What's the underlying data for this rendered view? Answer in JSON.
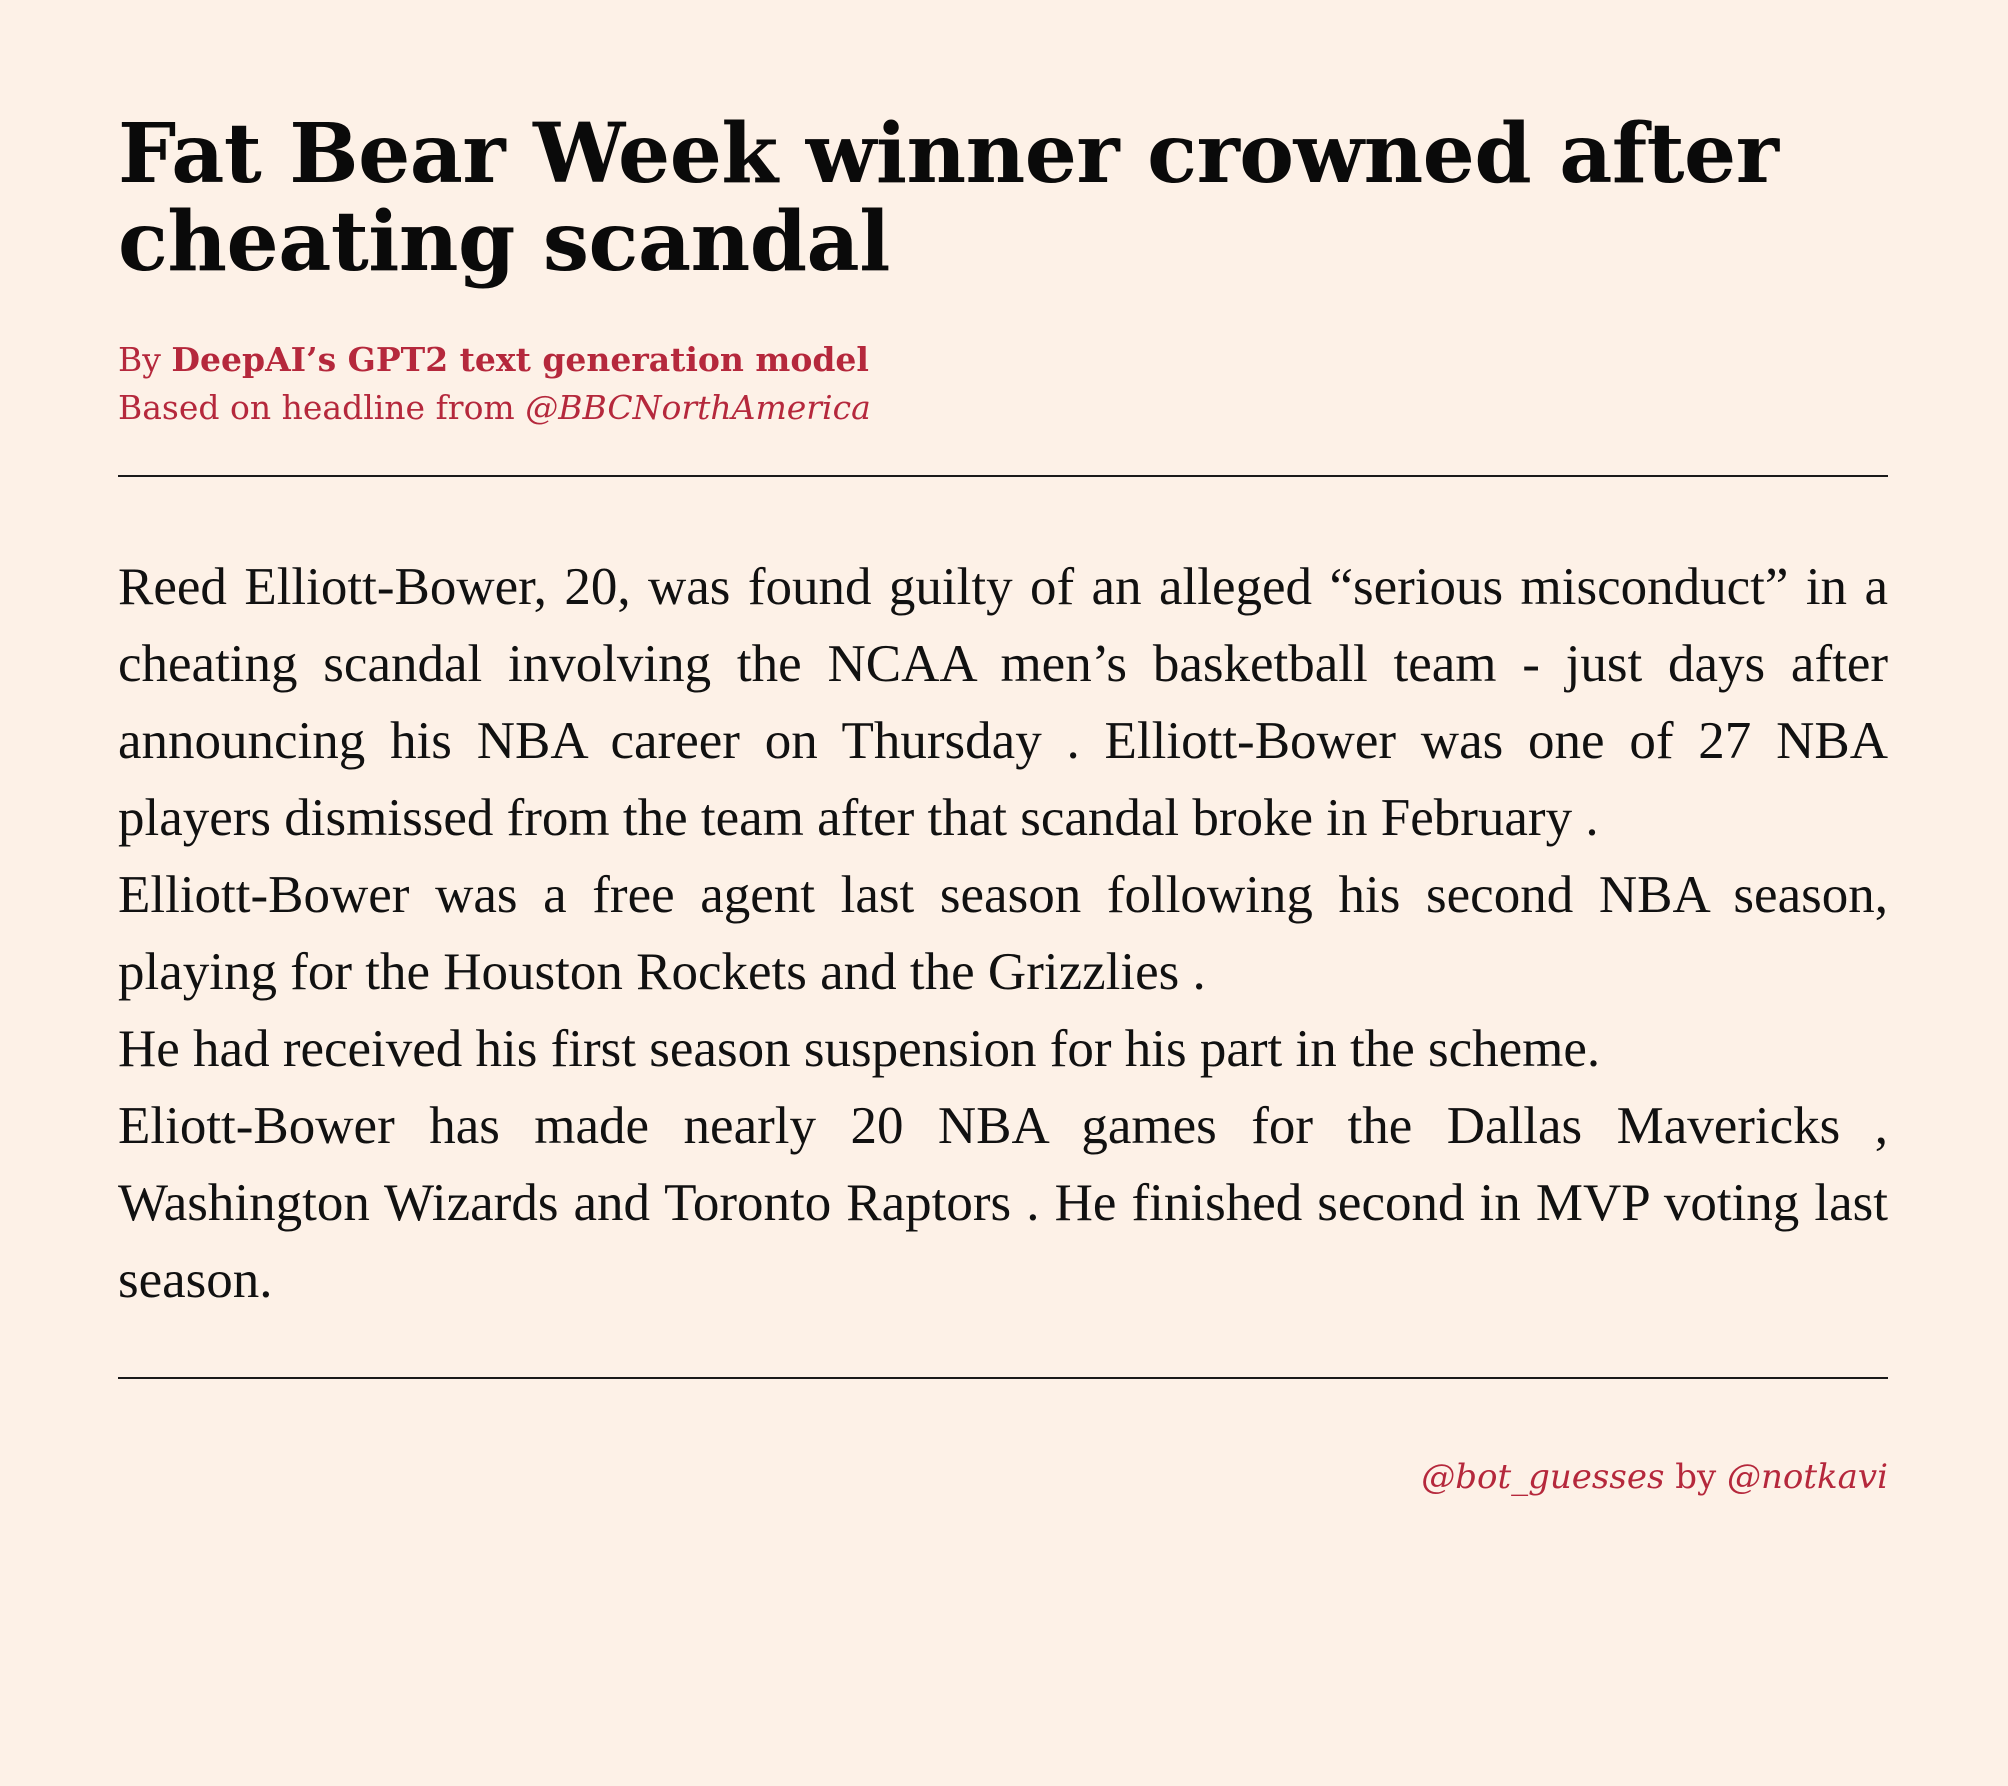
{
  "article": {
    "headline": "Fat Bear Week winner crowned after cheating scandal",
    "byline_prefix": "By ",
    "author": "DeepAI’s GPT2 text generation model",
    "based_on_prefix": "Based on headline from ",
    "source_handle": "@BBCNorthAmerica",
    "paragraphs": [
      "Reed Elliott-Bower, 20, was found guilty of an alleged “serious misconduct” in a cheating scandal involving the NCAA men’s basketball team - just days after announcing his NBA career on Thursday . Elliott-Bower was one of 27 NBA players dismissed from the team after that scandal broke in February .",
      "Elliott-Bower was a free agent last season following his second NBA season, playing for the Houston Rockets and the Grizzlies .",
      "He had received his first season suspension for his part in the scheme.",
      "Eliott-Bower has made nearly 20 NBA games for the Dallas Mavericks , Washington Wizards and Toronto Raptors . He finished second in MVP voting last season."
    ]
  },
  "footer": {
    "bot_handle": "@bot_guesses",
    "by_word": " by ",
    "creator_handle": "@notkavi"
  },
  "colors": {
    "background": "#fdf1e7",
    "accent": "#b5283c",
    "text": "#111111"
  }
}
